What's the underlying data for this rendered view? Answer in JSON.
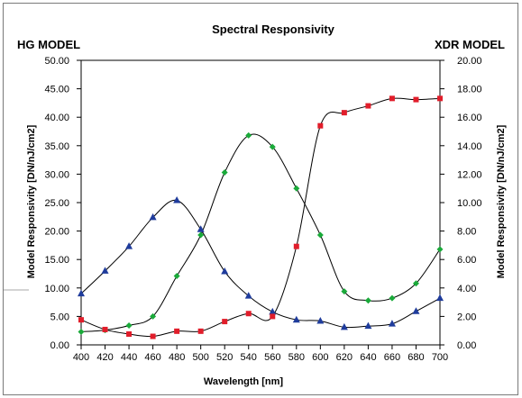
{
  "chart_data": {
    "type": "line",
    "title": "Spectral Responsivity",
    "xlabel": "Wavelength [nm]",
    "ylabel_left": "Model Responsivity [DN/nJ/cm2]",
    "ylabel_right": "Model Responsivity [DN/nJ/cm2]",
    "left_axis_title": "HG MODEL",
    "right_axis_title": "XDR MODEL",
    "xlim": [
      400,
      700
    ],
    "ylim_left": [
      0,
      50
    ],
    "ylim_right": [
      0,
      20
    ],
    "x_ticks": [
      "400",
      "420",
      "440",
      "460",
      "480",
      "500",
      "520",
      "540",
      "560",
      "580",
      "600",
      "620",
      "640",
      "660",
      "680",
      "700"
    ],
    "y_left_ticks": [
      "0.00",
      "5.00",
      "10.00",
      "15.00",
      "20.00",
      "25.00",
      "30.00",
      "35.00",
      "40.00",
      "45.00",
      "50.00"
    ],
    "y_right_ticks": [
      "0.00",
      "2.00",
      "4.00",
      "6.00",
      "8.00",
      "10.00",
      "12.00",
      "14.00",
      "16.00",
      "18.00",
      "20.00"
    ],
    "grid": false,
    "series": [
      {
        "color": "#1f3c9c",
        "marker": "triangle",
        "axis": "left",
        "x": [
          400,
          420,
          440,
          460,
          480,
          500,
          520,
          540,
          560,
          580,
          600,
          620,
          640,
          660,
          680,
          700
        ],
        "y": [
          9.0,
          13.0,
          17.3,
          22.4,
          25.4,
          20.3,
          12.9,
          8.6,
          5.8,
          4.4,
          4.2,
          3.1,
          3.3,
          3.7,
          5.9,
          8.2
        ]
      },
      {
        "color": "#1aaa3a",
        "marker": "diamond",
        "axis": "left",
        "x": [
          400,
          420,
          440,
          460,
          480,
          500,
          520,
          540,
          560,
          580,
          600,
          620,
          640,
          660,
          680,
          700
        ],
        "y": [
          2.3,
          2.6,
          3.4,
          5.0,
          12.1,
          19.3,
          30.3,
          36.8,
          34.8,
          27.5,
          19.3,
          9.4,
          7.8,
          8.2,
          10.8,
          16.8
        ]
      },
      {
        "color": "#e11d2a",
        "marker": "square",
        "axis": "left",
        "x": [
          400,
          420,
          440,
          460,
          480,
          500,
          520,
          540,
          560,
          580,
          600,
          620,
          640,
          660,
          680,
          700
        ],
        "y": [
          4.4,
          2.7,
          1.9,
          1.5,
          2.4,
          2.4,
          4.1,
          5.5,
          5.0,
          17.3,
          38.5,
          40.8,
          42.0,
          43.3,
          43.1,
          43.3
        ]
      }
    ]
  }
}
